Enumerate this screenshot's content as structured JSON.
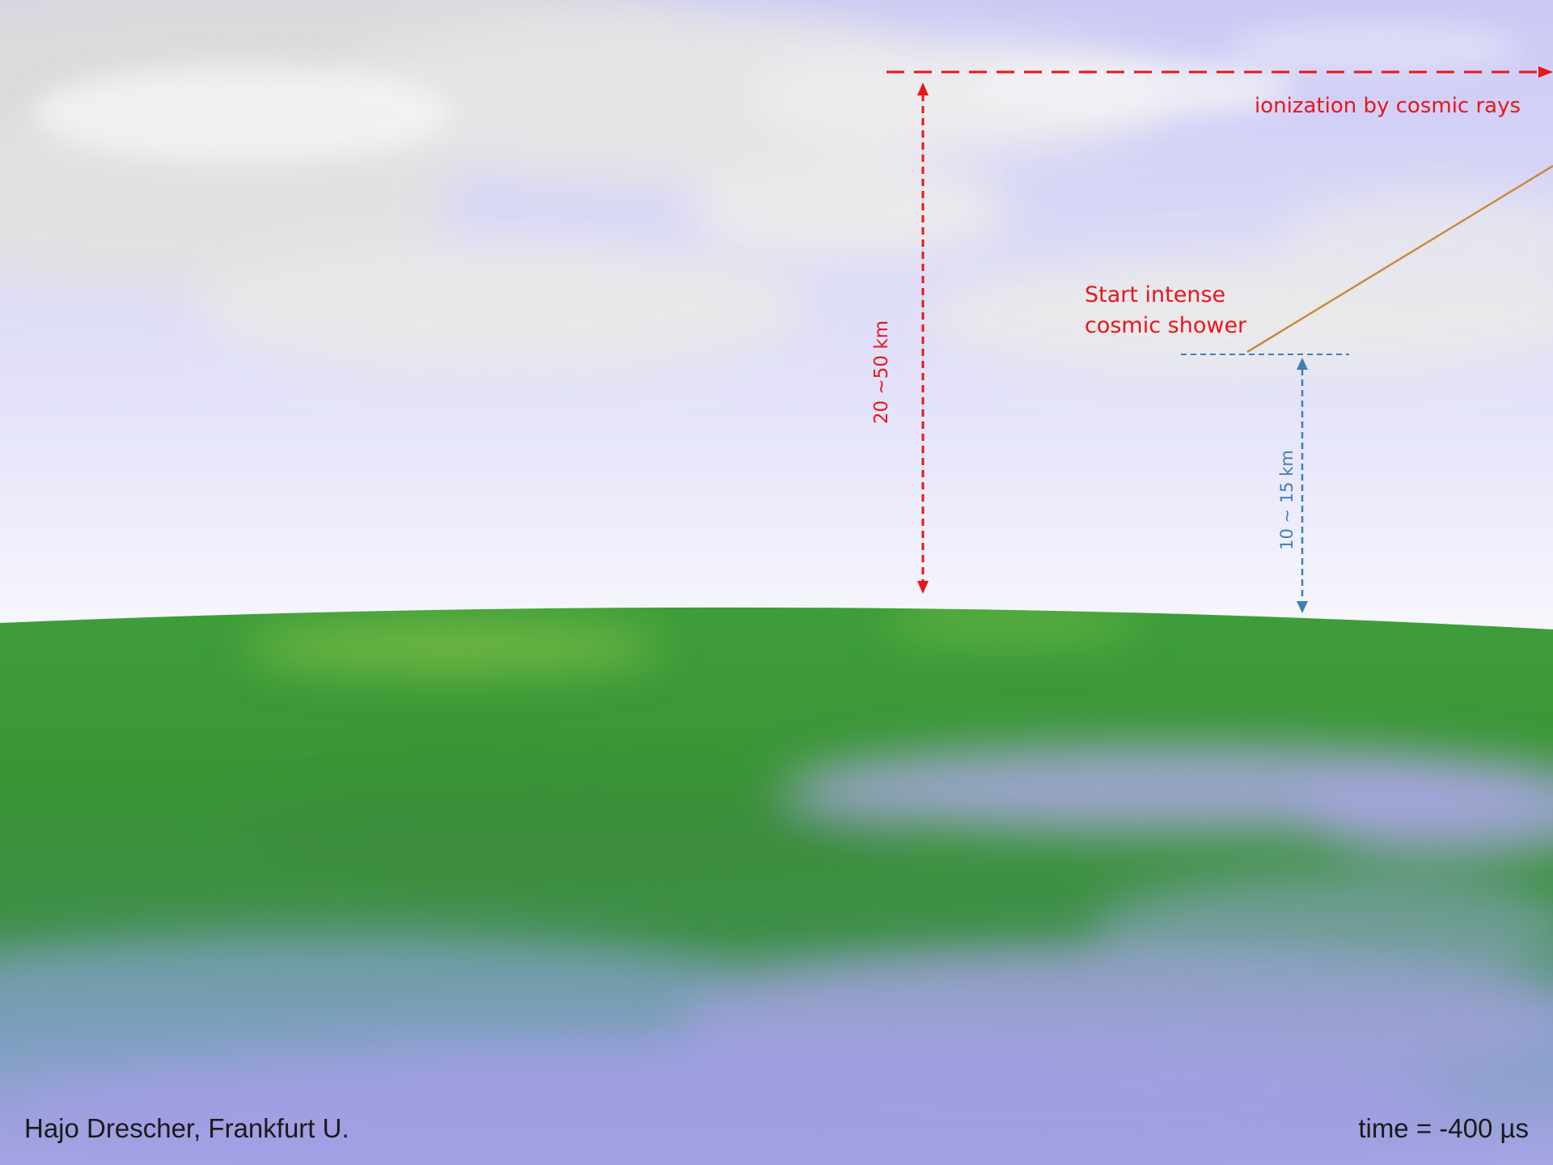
{
  "annotations": {
    "ionization_label": "ionization by cosmic rays",
    "shower_start_line1": "Start intense",
    "shower_start_line2": "cosmic shower",
    "altitude_ionization": "20 ~50  km",
    "altitude_shower": "10 ~ 15 km"
  },
  "footer": {
    "credit": "Hajo Drescher, Frankfurt U.",
    "time_readout": "time = -400 µs"
  },
  "colors": {
    "ionization_marker": "#e8161b",
    "shower_marker": "#3f7fb6",
    "cosmic_ray_track": "#c98a3e",
    "ground": "#3c9a3c",
    "sky": "#cfd1f5"
  }
}
